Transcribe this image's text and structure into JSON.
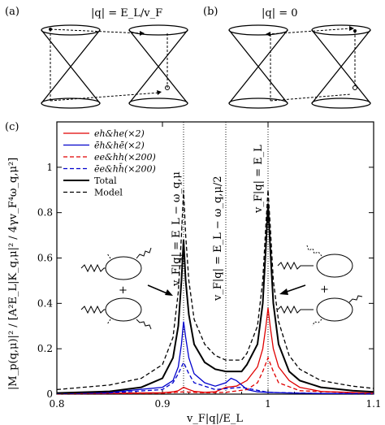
{
  "panel_a": {
    "label": "(a)",
    "title": "|q| = E_L/v_F"
  },
  "panel_b": {
    "label": "(b)",
    "title": "|q| = 0"
  },
  "panel_c": {
    "label": "(c)"
  },
  "annotations": {
    "peak1": "v_F|q| = E_L − ω_q,μ",
    "peak2": "v_F|q| = E_L − ω_q,μ/2",
    "peak3": "v_F|q| = E_L",
    "plus": "+"
  },
  "chart_data": {
    "type": "line",
    "xlabel": "v_F|q|/E_L",
    "ylabel": "|M_p(q,μ)|² / [A²E_L|K_q,μ|² / 4γv_F⁴ω_q,μ²]",
    "xlim": [
      0.8,
      1.1
    ],
    "ylim": [
      0,
      1.2
    ],
    "xticks": [
      "0.8",
      "0.9",
      "1",
      "1.1"
    ],
    "yticks": [
      "0",
      "0.2",
      "0.4",
      "0.6",
      "0.8",
      "1"
    ],
    "legend": [
      "eh&he(×2)",
      "ēh&hē(×2)",
      "ee&hh(×200)",
      "ēe&hh̄(×200)",
      "Total",
      "Model"
    ],
    "legend_placement": "top-left",
    "colors": {
      "red": "#e00000",
      "blue": "#0000cc",
      "black": "#000000"
    },
    "series": [
      {
        "name": "eh&he(×2)",
        "style": "solid",
        "color": "#e00000",
        "x": [
          0.8,
          0.85,
          0.9,
          0.91,
          0.915,
          0.92,
          0.925,
          0.93,
          0.94,
          0.95,
          0.96,
          0.97,
          0.98,
          0.99,
          0.995,
          0.998,
          1.0,
          1.002,
          1.005,
          1.01,
          1.02,
          1.03,
          1.05,
          1.1
        ],
        "y": [
          0.003,
          0.004,
          0.006,
          0.01,
          0.015,
          0.03,
          0.02,
          0.012,
          0.008,
          0.01,
          0.03,
          0.035,
          0.06,
          0.12,
          0.2,
          0.3,
          0.38,
          0.3,
          0.2,
          0.12,
          0.06,
          0.03,
          0.012,
          0.004
        ]
      },
      {
        "name": "ēh&hē(×2)",
        "style": "solid",
        "color": "#0000cc",
        "x": [
          0.8,
          0.85,
          0.9,
          0.91,
          0.915,
          0.918,
          0.92,
          0.922,
          0.925,
          0.93,
          0.94,
          0.95,
          0.96,
          0.965,
          0.97,
          0.975,
          0.98,
          0.99,
          1.0,
          1.02,
          1.05,
          1.1
        ],
        "y": [
          0.004,
          0.008,
          0.03,
          0.06,
          0.12,
          0.22,
          0.32,
          0.25,
          0.16,
          0.09,
          0.05,
          0.035,
          0.05,
          0.07,
          0.06,
          0.04,
          0.02,
          0.01,
          0.008,
          0.005,
          0.003,
          0.002
        ]
      },
      {
        "name": "ee&hh(×200)",
        "style": "dashed",
        "color": "#e00000",
        "x": [
          0.8,
          0.85,
          0.9,
          0.92,
          0.94,
          0.96,
          0.98,
          0.99,
          0.995,
          1.0,
          1.005,
          1.01,
          1.03,
          1.1
        ],
        "y": [
          0.001,
          0.002,
          0.004,
          0.01,
          0.006,
          0.008,
          0.02,
          0.05,
          0.1,
          0.16,
          0.1,
          0.05,
          0.015,
          0.002
        ]
      },
      {
        "name": "ēe&hh̄(×200)",
        "style": "dashed",
        "color": "#0000cc",
        "x": [
          0.8,
          0.85,
          0.9,
          0.91,
          0.915,
          0.92,
          0.925,
          0.93,
          0.95,
          0.975,
          1.0,
          1.05,
          1.1
        ],
        "y": [
          0.002,
          0.005,
          0.02,
          0.05,
          0.09,
          0.14,
          0.09,
          0.05,
          0.02,
          0.03,
          0.008,
          0.003,
          0.001
        ]
      },
      {
        "name": "Total",
        "style": "solid",
        "color": "#000000",
        "x": [
          0.8,
          0.85,
          0.88,
          0.9,
          0.91,
          0.915,
          0.918,
          0.92,
          0.922,
          0.925,
          0.93,
          0.94,
          0.95,
          0.96,
          0.975,
          0.98,
          0.99,
          0.995,
          0.998,
          1.0,
          1.002,
          1.005,
          1.01,
          1.02,
          1.03,
          1.05,
          1.08,
          1.1
        ],
        "y": [
          0.005,
          0.012,
          0.03,
          0.07,
          0.16,
          0.3,
          0.5,
          0.68,
          0.5,
          0.35,
          0.22,
          0.14,
          0.11,
          0.1,
          0.1,
          0.13,
          0.22,
          0.4,
          0.65,
          0.84,
          0.65,
          0.4,
          0.22,
          0.1,
          0.06,
          0.03,
          0.015,
          0.01
        ]
      },
      {
        "name": "Model",
        "style": "dashed",
        "color": "#000000",
        "x": [
          0.8,
          0.85,
          0.88,
          0.9,
          0.91,
          0.915,
          0.918,
          0.92,
          0.922,
          0.925,
          0.93,
          0.94,
          0.95,
          0.96,
          0.975,
          0.98,
          0.99,
          0.995,
          0.998,
          1.0,
          1.002,
          1.005,
          1.01,
          1.02,
          1.03,
          1.05,
          1.08,
          1.1
        ],
        "y": [
          0.02,
          0.04,
          0.07,
          0.13,
          0.25,
          0.45,
          0.7,
          0.9,
          0.7,
          0.5,
          0.33,
          0.22,
          0.17,
          0.15,
          0.15,
          0.18,
          0.3,
          0.5,
          0.75,
          0.9,
          0.75,
          0.5,
          0.32,
          0.17,
          0.11,
          0.06,
          0.035,
          0.025
        ]
      }
    ]
  }
}
